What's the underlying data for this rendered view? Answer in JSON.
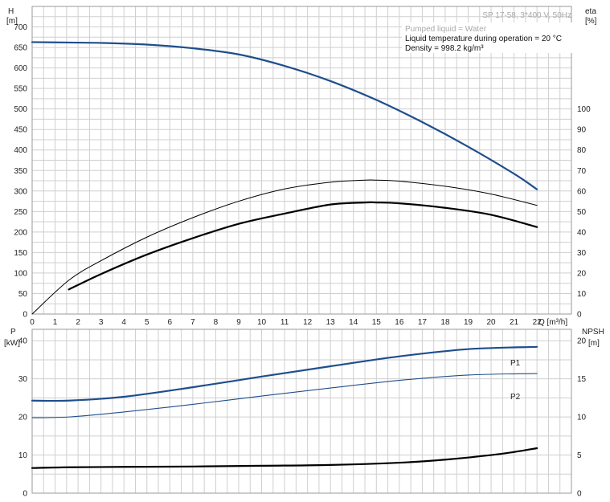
{
  "header": {
    "title": "SP 17-58, 3*400 V, 50Hz",
    "notes": [
      "Pumped liquid = Water",
      "Liquid temperature during operation = 20 °C",
      "Density = 998.2 kg/m³"
    ]
  },
  "colors": {
    "curve_blue": "#1f4e8c",
    "curve_black": "#000000",
    "grid": "#cfcfcf",
    "frame": "#9a9a9a"
  },
  "axes": {
    "top_left_label": [
      "H",
      "[m]"
    ],
    "top_right_label": [
      "eta",
      "[%]"
    ],
    "x_label": "Q [m³/h]",
    "bottom_left_label": [
      "P",
      "[kW]"
    ],
    "bottom_right_label": [
      "NPSH",
      "[m]"
    ]
  },
  "chart_data": [
    {
      "type": "line",
      "x_ticks": [
        0,
        1,
        2,
        3,
        4,
        5,
        6,
        7,
        8,
        9,
        10,
        11,
        12,
        13,
        14,
        15,
        16,
        17,
        18,
        19,
        20,
        21,
        22
      ],
      "xlim": [
        0,
        23.5
      ],
      "ylim": [
        0,
        750
      ],
      "y_ticks": [
        0,
        50,
        100,
        150,
        200,
        250,
        300,
        350,
        400,
        450,
        500,
        550,
        600,
        650,
        700
      ],
      "y2_ticks": [
        0,
        10,
        20,
        30,
        40,
        50,
        60,
        70,
        80,
        90,
        100
      ],
      "y2_scale": 5,
      "grid": true,
      "series": [
        {
          "key": "H",
          "axis": "y",
          "style": "blue-thick",
          "x": [
            0,
            1.6,
            3,
            5,
            7,
            9,
            11,
            13,
            15,
            17,
            19,
            21,
            22
          ],
          "y": [
            663,
            662,
            661,
            657,
            648,
            633,
            605,
            568,
            522,
            468,
            408,
            342,
            304
          ]
        },
        {
          "key": "eta-upper",
          "axis": "y2",
          "style": "black-thin",
          "x": [
            0,
            1.6,
            3,
            5,
            7,
            9,
            11,
            13,
            14.5,
            15,
            16,
            18,
            20,
            22
          ],
          "y": [
            0,
            16.5,
            26,
            37.5,
            47,
            55,
            61,
            64.3,
            65.3,
            65.3,
            64.8,
            62.3,
            58.5,
            53
          ]
        },
        {
          "key": "eta-lower",
          "axis": "y2",
          "style": "black-thick",
          "x": [
            1.6,
            3,
            5,
            7,
            9,
            11,
            13,
            14.5,
            15,
            16,
            18,
            20,
            22
          ],
          "y": [
            12,
            19.5,
            29,
            37,
            44,
            49,
            53.4,
            54.4,
            54.4,
            54,
            51.8,
            48.4,
            42.4
          ]
        }
      ]
    },
    {
      "type": "line",
      "x_ticks": [
        0,
        1,
        2,
        3,
        4,
        5,
        6,
        7,
        8,
        9,
        10,
        11,
        12,
        13,
        14,
        15,
        16,
        17,
        18,
        19,
        20,
        21,
        22
      ],
      "xlim": [
        0,
        23.5
      ],
      "ylim": [
        0,
        43
      ],
      "y_ticks": [
        0,
        10,
        20,
        30,
        40
      ],
      "y2_ticks": [
        0,
        5,
        10,
        15,
        20
      ],
      "y2_scale": 2,
      "grid": true,
      "series": [
        {
          "name": "P1",
          "key": "P1",
          "axis": "y",
          "style": "blue-thick",
          "x": [
            0,
            1.6,
            4,
            7,
            10,
            13,
            16,
            19,
            22
          ],
          "y": [
            24.3,
            24.3,
            25.3,
            27.8,
            30.6,
            33.3,
            35.9,
            37.8,
            38.4
          ]
        },
        {
          "name": "P2",
          "key": "P2",
          "axis": "y",
          "style": "blue-thin",
          "x": [
            0,
            1.6,
            4,
            7,
            10,
            13,
            16,
            19,
            22
          ],
          "y": [
            19.8,
            20,
            21.3,
            23.3,
            25.5,
            27.6,
            29.6,
            31,
            31.4
          ]
        },
        {
          "key": "NPSH",
          "axis": "y2",
          "style": "black-thick",
          "x": [
            0,
            1.6,
            4,
            7,
            10,
            13,
            16,
            18,
            20,
            21,
            22
          ],
          "y": [
            3.3,
            3.4,
            3.45,
            3.5,
            3.6,
            3.7,
            4,
            4.4,
            5,
            5.4,
            5.9
          ]
        }
      ]
    }
  ]
}
